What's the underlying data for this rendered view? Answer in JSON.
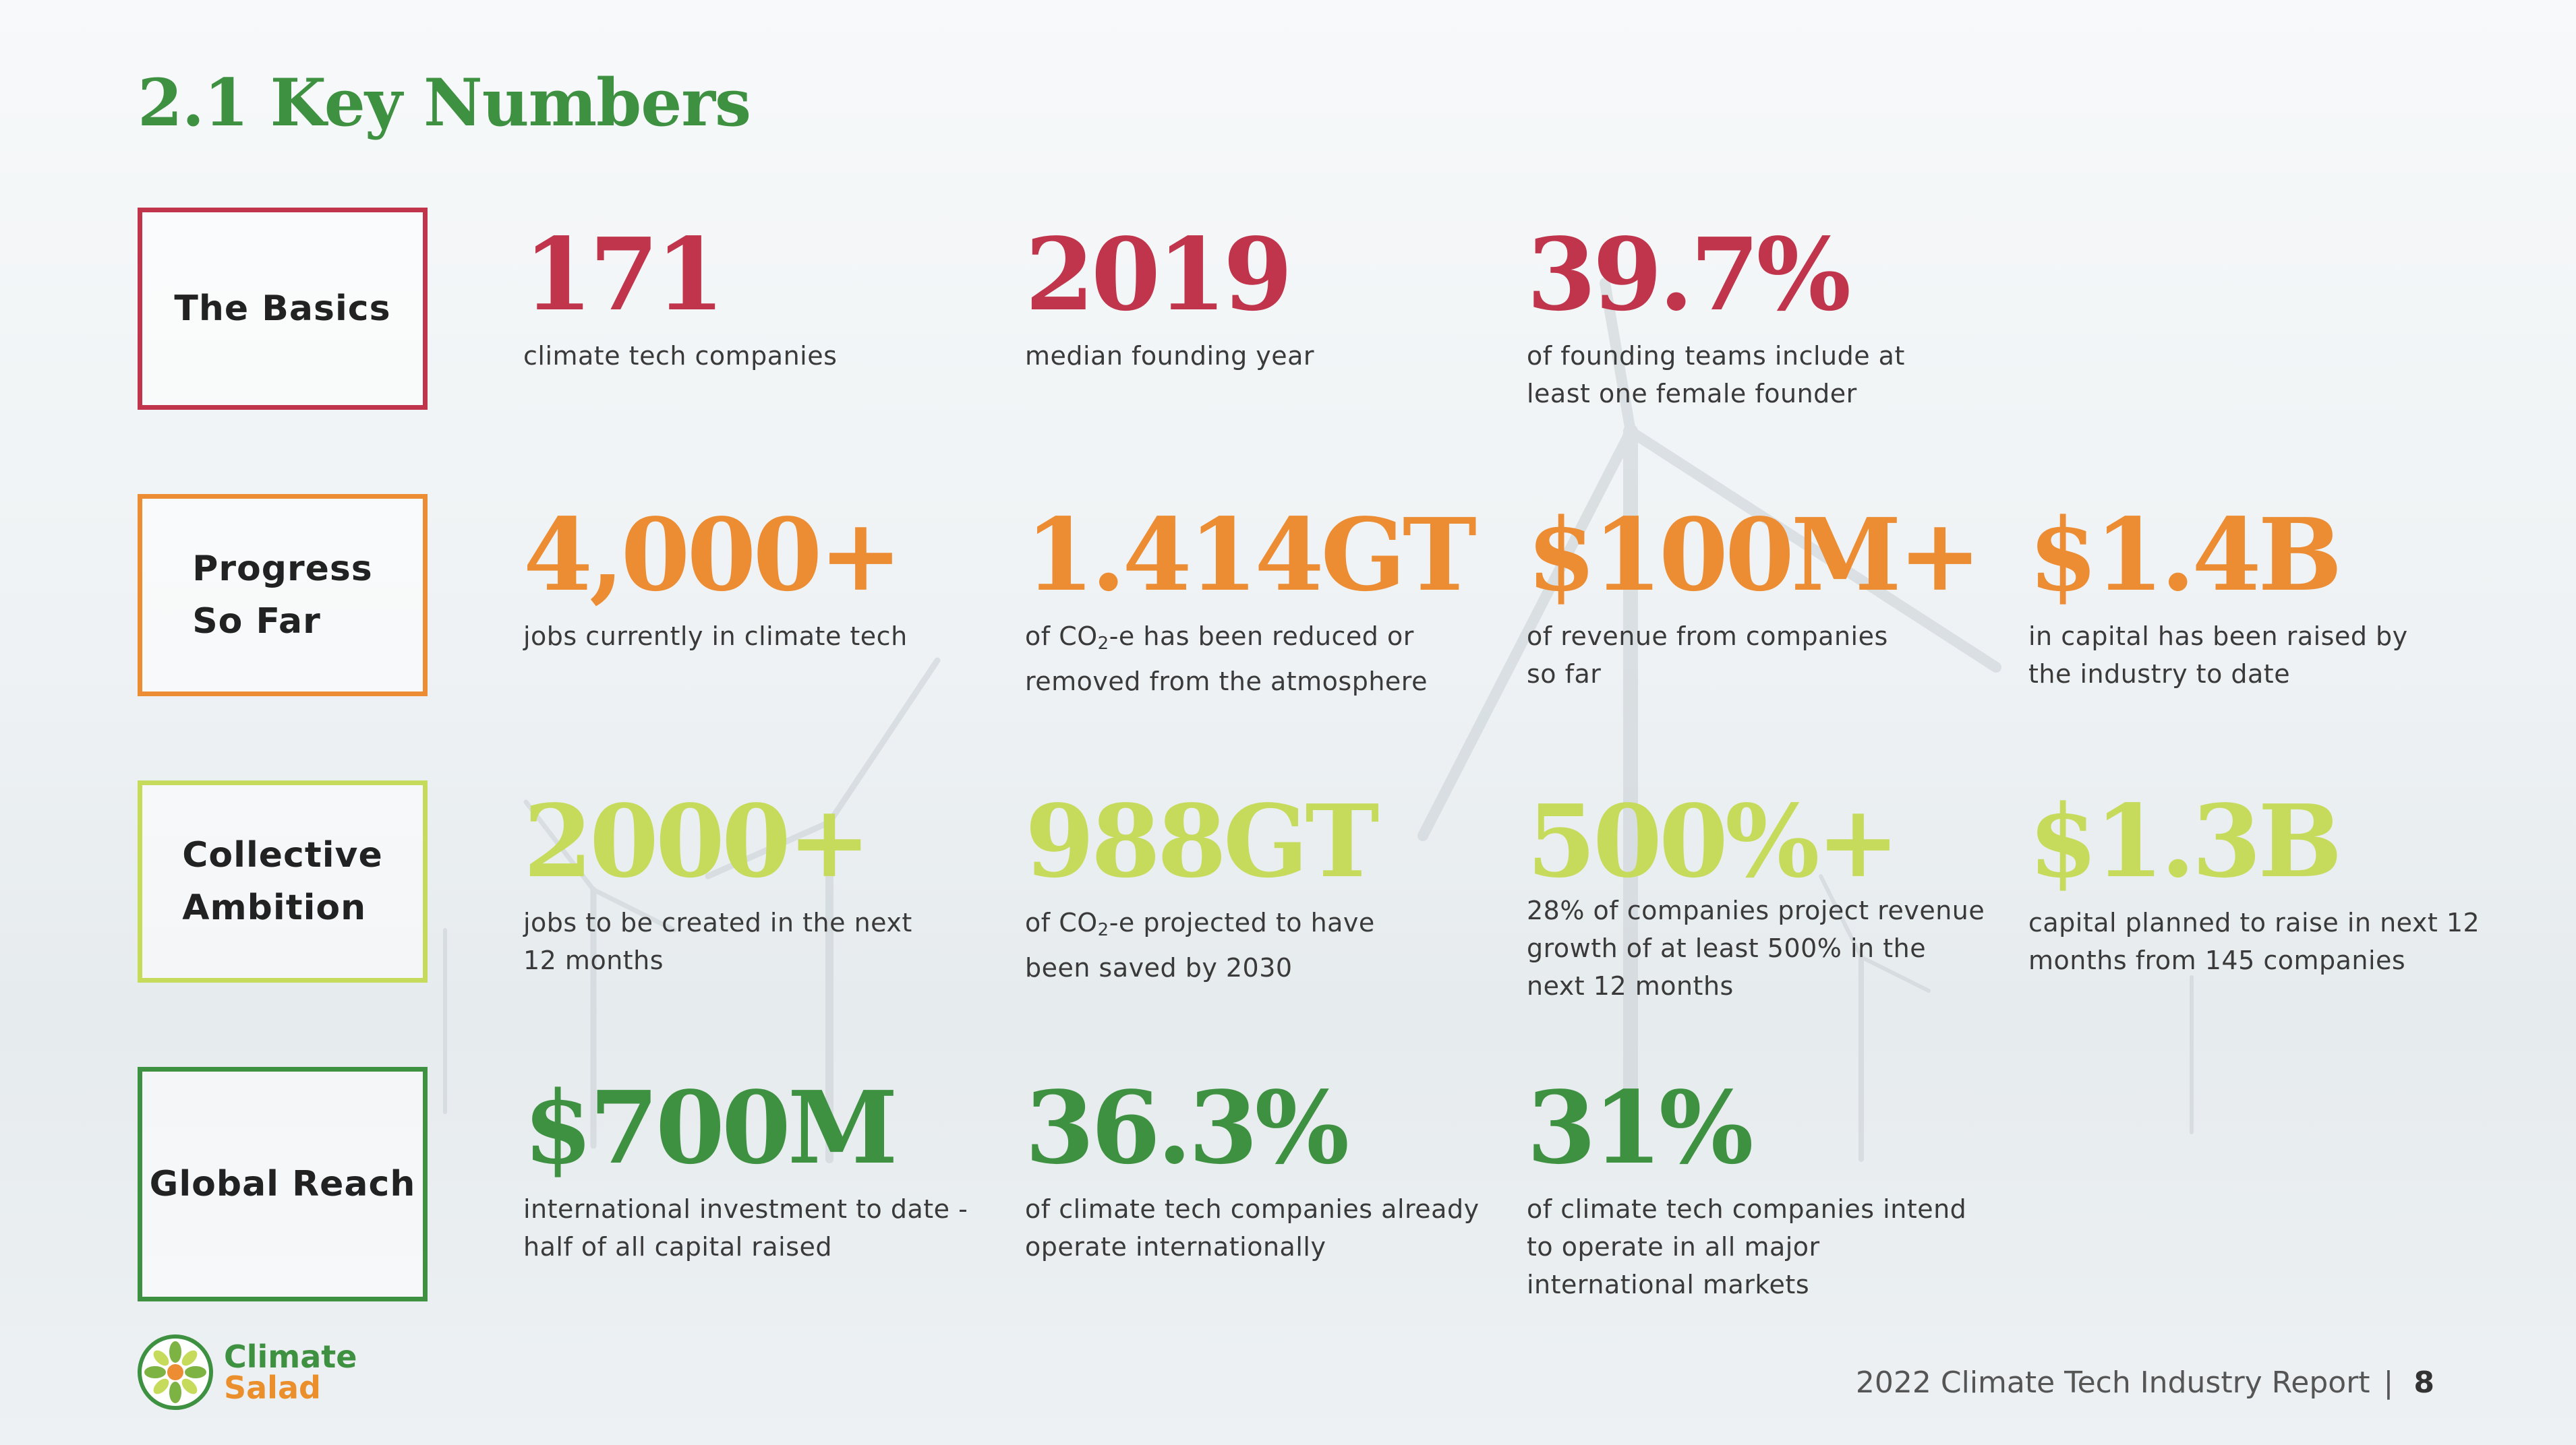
{
  "title": "2.1 Key Numbers",
  "colors": {
    "basics": "#c0354b",
    "progress": "#ec8c33",
    "ambition": "#c6db5b",
    "global": "#3f9142",
    "title": "#3f9142"
  },
  "rows": [
    {
      "category": "The Basics",
      "stats": [
        {
          "value": "171",
          "desc": "climate tech companies"
        },
        {
          "value": "2019",
          "desc": "median founding year"
        },
        {
          "value": "39.7%",
          "desc": "of founding teams include at\nleast one female founder"
        }
      ]
    },
    {
      "category": "Progress\nSo Far",
      "stats": [
        {
          "value": "4,000+",
          "desc": "jobs currently in climate tech"
        },
        {
          "value": "1.414GT",
          "desc_pre": "of CO",
          "desc_sub": "2",
          "desc_post": "-e has been reduced or\nremoved from the atmosphere"
        },
        {
          "value": "$100M+",
          "desc": "of revenue from companies\nso far"
        },
        {
          "value": "$1.4B",
          "desc": "in capital has been raised by\nthe industry to date"
        }
      ]
    },
    {
      "category": "Collective\nAmbition",
      "stats": [
        {
          "value": "2000+",
          "desc": "jobs to be created in the next\n12 months"
        },
        {
          "value": "988GT",
          "desc_pre": "of CO",
          "desc_sub": "2",
          "desc_post": "-e projected to have\nbeen saved by 2030"
        },
        {
          "value": "500%+",
          "desc": "28% of companies project revenue\ngrowth of at least 500% in the\nnext 12 months"
        },
        {
          "value": "$1.3B",
          "desc": "capital planned to raise in next 12\nmonths from 145 companies"
        }
      ]
    },
    {
      "category": "Global Reach",
      "stats": [
        {
          "value": "$700M",
          "desc": "international investment to date -\nhalf of all capital raised"
        },
        {
          "value": "36.3%",
          "desc": "of climate tech companies already\noperate internationally"
        },
        {
          "value": "31%",
          "desc": "of climate tech companies intend\nto operate in all major\ninternational markets"
        }
      ]
    }
  ],
  "logo": {
    "line1": "Climate",
    "line2": "Salad",
    "icon": "climate-salad-logo-icon"
  },
  "footer": {
    "report": "2022 Climate Tech Industry Report",
    "separator": "|",
    "page": "8"
  }
}
